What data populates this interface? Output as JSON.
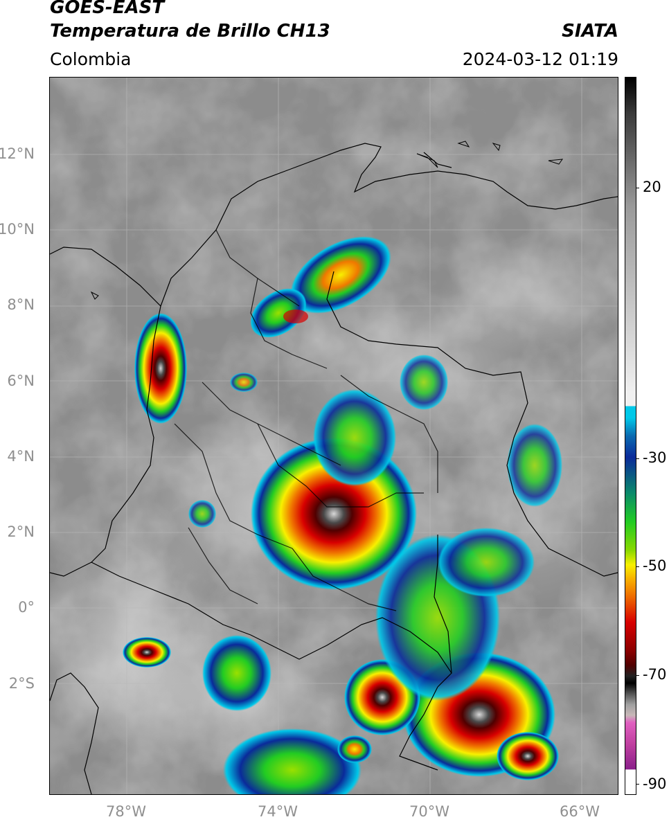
{
  "header": {
    "line1": "GOES-EAST",
    "line2": "Temperatura de Brillo CH13",
    "right_label": "SIATA",
    "region": "Colombia",
    "datetime": "2024-03-12 01:19"
  },
  "map": {
    "lat_labels": [
      "12°N",
      "10°N",
      "8°N",
      "6°N",
      "4°N",
      "2°N",
      "0°",
      "2°S"
    ],
    "lon_labels": [
      "78°W",
      "74°W",
      "70°W",
      "66°W"
    ],
    "extent": {
      "lon_min": -80,
      "lon_max": -65,
      "lat_min": -5,
      "lat_max": 14
    }
  },
  "colorbar": {
    "labels": [
      "20",
      "-30",
      "-50",
      "-70",
      "-90"
    ],
    "colors": {
      "warm_top": "#000000",
      "gray": "#9a9a9a",
      "white": "#f0f0f0",
      "cyan": "#00c8e8",
      "blue": "#0a2a9a",
      "green": "#22cc22",
      "yellow": "#f8f000",
      "orange": "#f07800",
      "red": "#d80000",
      "dark_red": "#500000",
      "magenta": "#e060c0",
      "purple": "#8a208a"
    }
  }
}
